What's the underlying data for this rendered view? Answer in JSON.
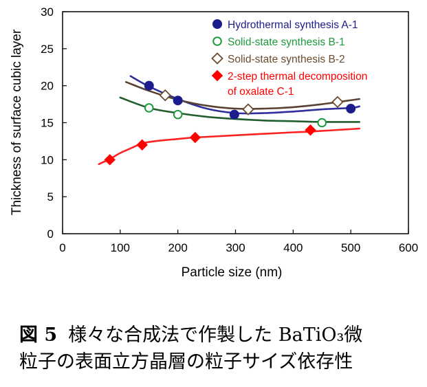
{
  "chart_data": {
    "type": "line",
    "title": "",
    "xlabel": "Particle size (nm)",
    "ylabel": "Thickness of surface cubic layer",
    "xlim": [
      0,
      600
    ],
    "ylim": [
      0,
      30
    ],
    "xticks": [
      0,
      100,
      200,
      300,
      400,
      500,
      600
    ],
    "yticks": [
      0,
      5,
      10,
      15,
      20,
      25,
      30
    ],
    "xtick_labels": [
      "0",
      "100",
      "200",
      "300",
      "400",
      "500",
      "600"
    ],
    "ytick_labels": [
      "0",
      "5",
      "10",
      "15",
      "20",
      "25",
      "30"
    ],
    "grid": false,
    "legend_position": "top-right",
    "series": [
      {
        "name": "Hydrothermal synthesis A-1",
        "marker": "filled-circle",
        "color": "#1c1c8c",
        "line_color": "#2e2e9e",
        "points": [
          [
            150,
            20.0
          ],
          [
            200,
            18.0
          ],
          [
            298,
            16.1
          ],
          [
            500,
            16.9
          ]
        ],
        "fit": [
          [
            118,
            21.3
          ],
          [
            150,
            19.9
          ],
          [
            200,
            18.2
          ],
          [
            250,
            16.9
          ],
          [
            300,
            16.3
          ],
          [
            350,
            16.3
          ],
          [
            400,
            16.5
          ],
          [
            450,
            16.8
          ],
          [
            500,
            17.0
          ],
          [
            515,
            17.2
          ]
        ]
      },
      {
        "name": "Solid-state synthesis B-1",
        "marker": "open-circle",
        "color": "#1e9a3c",
        "line_color": "#215e2e",
        "points": [
          [
            150,
            17.0
          ],
          [
            200,
            16.1
          ],
          [
            450,
            15.0
          ]
        ],
        "fit": [
          [
            100,
            18.4
          ],
          [
            150,
            17.0
          ],
          [
            200,
            16.3
          ],
          [
            250,
            15.8
          ],
          [
            300,
            15.5
          ],
          [
            350,
            15.3
          ],
          [
            400,
            15.2
          ],
          [
            450,
            15.1
          ],
          [
            515,
            15.1
          ]
        ]
      },
      {
        "name": "Solid-state synthesis B-2",
        "marker": "open-diamond",
        "color": "#6b4a2e",
        "line_color": "#5a4232",
        "points": [
          [
            178,
            18.7
          ],
          [
            322,
            16.8
          ],
          [
            477,
            17.8
          ]
        ],
        "fit": [
          [
            110,
            20.5
          ],
          [
            150,
            19.3
          ],
          [
            200,
            18.1
          ],
          [
            250,
            17.3
          ],
          [
            300,
            16.9
          ],
          [
            350,
            16.9
          ],
          [
            400,
            17.1
          ],
          [
            450,
            17.5
          ],
          [
            515,
            18.2
          ]
        ]
      },
      {
        "name": "2-step thermal decomposition of oxalate C-1",
        "name_lines": [
          "2-step thermal decomposition",
          "of oxalate C-1"
        ],
        "marker": "filled-diamond",
        "color": "#ff0000",
        "line_color": "#ff2222",
        "points": [
          [
            82,
            10.0
          ],
          [
            138,
            12.0
          ],
          [
            230,
            13.0
          ],
          [
            430,
            14.0
          ]
        ],
        "fit": [
          [
            63,
            9.4
          ],
          [
            82,
            10.1
          ],
          [
            100,
            10.9
          ],
          [
            120,
            11.6
          ],
          [
            138,
            12.2
          ],
          [
            160,
            12.5
          ],
          [
            200,
            12.8
          ],
          [
            230,
            13.0
          ],
          [
            300,
            13.3
          ],
          [
            400,
            13.7
          ],
          [
            430,
            13.8
          ],
          [
            515,
            14.2
          ]
        ]
      }
    ]
  },
  "caption": {
    "label": "図 5",
    "line1": "様々な合成法で作製した BaTiO₃微",
    "line2": "粒子の表面立方晶層の粒子サイズ依存性"
  }
}
